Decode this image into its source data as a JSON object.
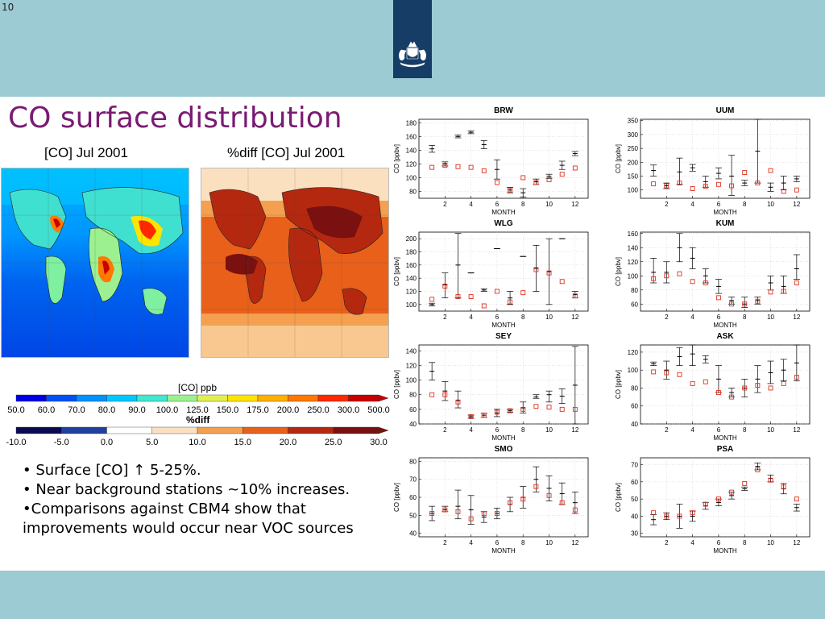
{
  "slide_number": "10",
  "title": "CO surface distribution",
  "maps": [
    {
      "title": "[CO] Jul 2001"
    },
    {
      "title": "%diff [CO] Jul 2001"
    }
  ],
  "colorbar_co": {
    "title": "[CO] ppb",
    "ticks": [
      "50.0",
      "60.0",
      "70.0",
      "80.0",
      "90.0",
      "100.0",
      "125.0",
      "150.0",
      "175.0",
      "200.0",
      "250.0",
      "300.0",
      "500.0"
    ],
    "colors": [
      "#0000e6",
      "#0050f5",
      "#0091ff",
      "#00c8ff",
      "#40e8d0",
      "#9cf090",
      "#e0f050",
      "#ffe400",
      "#ffb000",
      "#ff7800",
      "#ff2800",
      "#c80000"
    ]
  },
  "colorbar_diff": {
    "title": "%diff",
    "ticks": [
      "-10.0",
      "-5.0",
      "0.0",
      "5.0",
      "10.0",
      "15.0",
      "20.0",
      "25.0",
      "30.0"
    ],
    "colors": [
      "#0a0a50",
      "#2040a0",
      "#ffffff",
      "#fbe0c0",
      "#f4a050",
      "#e8601a",
      "#b42810",
      "#7a1010"
    ]
  },
  "bullets": [
    "• Surface [CO] ↑ 5-25%.",
    "• Near background stations ~10% increases.",
    "•Comparisons against CBM4 show that",
    "improvements would occur near VOC sources"
  ],
  "chart_data": [
    {
      "type": "scatter",
      "title": "BRW",
      "xlabel": "MONTH",
      "ylabel": "CO [ppbv]",
      "xlim": [
        0,
        13
      ],
      "ylim": [
        70,
        185
      ],
      "yticks": [
        80,
        100,
        120,
        140,
        160,
        180
      ],
      "xticks": [
        2,
        4,
        6,
        8,
        10,
        12
      ],
      "series": [
        {
          "x": [
            1,
            2,
            3,
            4,
            5,
            6,
            7,
            8,
            9,
            10,
            11,
            12
          ],
          "mean": [
            142,
            120,
            160,
            166,
            148,
            112,
            82,
            78,
            94,
            102,
            118,
            135
          ],
          "low": [
            137,
            117,
            158,
            164,
            142,
            98,
            78,
            72,
            90,
            99,
            112,
            132
          ],
          "high": [
            147,
            123,
            162,
            168,
            154,
            126,
            86,
            84,
            98,
            105,
            124,
            138
          ]
        },
        {
          "x": [
            1,
            2,
            3,
            4,
            5,
            6,
            7,
            8,
            9,
            10,
            11,
            12
          ],
          "values": [
            115,
            118,
            116,
            115,
            110,
            93,
            82,
            100,
            93,
            97,
            105,
            114
          ]
        }
      ]
    },
    {
      "type": "scatter",
      "title": "UUM",
      "xlabel": "MONTH",
      "ylabel": "CO [ppbv]",
      "xlim": [
        0,
        13
      ],
      "ylim": [
        70,
        355
      ],
      "yticks": [
        100,
        150,
        200,
        250,
        300,
        350
      ],
      "xticks": [
        2,
        4,
        6,
        8,
        10,
        12
      ],
      "series": [
        {
          "x": [
            1,
            2,
            3,
            4,
            5,
            6,
            7,
            8,
            9,
            10,
            11,
            12
          ],
          "mean": [
            170,
            115,
            165,
            180,
            130,
            160,
            150,
            125,
            240,
            110,
            125,
            140
          ],
          "low": [
            150,
            105,
            120,
            168,
            110,
            140,
            80,
            115,
            125,
            95,
            100,
            130
          ],
          "high": [
            190,
            125,
            215,
            192,
            150,
            180,
            225,
            135,
            355,
            125,
            150,
            150
          ]
        },
        {
          "x": [
            1,
            2,
            3,
            4,
            5,
            6,
            7,
            8,
            9,
            10,
            11,
            12
          ],
          "values": [
            122,
            115,
            125,
            105,
            113,
            120,
            115,
            163,
            125,
            170,
            95,
            100
          ]
        }
      ]
    },
    {
      "type": "scatter",
      "title": "WLG",
      "xlabel": "MONTH",
      "ylabel": "CO [ppbv]",
      "xlim": [
        0,
        13
      ],
      "ylim": [
        90,
        210
      ],
      "yticks": [
        100,
        120,
        140,
        160,
        180,
        200
      ],
      "xticks": [
        2,
        4,
        6,
        8,
        10,
        12
      ],
      "series": [
        {
          "x": [
            1,
            2,
            3,
            4,
            5,
            6,
            7,
            8,
            9,
            10,
            11,
            12
          ],
          "mean": [
            100,
            130,
            160,
            148,
            122,
            185,
            110,
            173,
            155,
            150,
            200,
            115
          ],
          "low": [
            98,
            110,
            110,
            148,
            120,
            185,
            100,
            173,
            120,
            100,
            200,
            110
          ],
          "high": [
            102,
            148,
            208,
            148,
            124,
            185,
            120,
            173,
            190,
            200,
            200,
            120
          ]
        },
        {
          "x": [
            1,
            2,
            3,
            4,
            5,
            6,
            7,
            8,
            9,
            10,
            11,
            12
          ],
          "values": [
            108,
            128,
            112,
            112,
            98,
            120,
            104,
            118,
            153,
            148,
            135,
            113
          ]
        }
      ]
    },
    {
      "type": "scatter",
      "title": "KUM",
      "xlabel": "MONTH",
      "ylabel": "CO [ppbv]",
      "xlim": [
        0,
        13
      ],
      "ylim": [
        50,
        162
      ],
      "yticks": [
        60,
        80,
        100,
        120,
        140,
        160
      ],
      "xticks": [
        2,
        4,
        6,
        8,
        10,
        12
      ],
      "series": [
        {
          "x": [
            1,
            2,
            3,
            4,
            5,
            6,
            7,
            8,
            9,
            10,
            11,
            12
          ],
          "mean": [
            105,
            105,
            140,
            125,
            100,
            85,
            65,
            60,
            65,
            90,
            85,
            110
          ],
          "low": [
            90,
            90,
            120,
            110,
            90,
            75,
            60,
            55,
            60,
            80,
            75,
            95
          ],
          "high": [
            125,
            120,
            160,
            140,
            110,
            95,
            70,
            70,
            70,
            100,
            100,
            130
          ]
        },
        {
          "x": [
            1,
            2,
            3,
            4,
            5,
            6,
            7,
            8,
            9,
            10,
            11,
            12
          ],
          "values": [
            96,
            100,
            103,
            92,
            90,
            69,
            60,
            60,
            64,
            77,
            78,
            90
          ]
        }
      ]
    },
    {
      "type": "scatter",
      "title": "SEY",
      "xlabel": "MONTH",
      "ylabel": "CO [ppbv]",
      "xlim": [
        0,
        13
      ],
      "ylim": [
        40,
        148
      ],
      "yticks": [
        40,
        60,
        80,
        100,
        120,
        140
      ],
      "xticks": [
        2,
        4,
        6,
        8,
        10,
        12
      ],
      "series": [
        {
          "x": [
            1,
            2,
            3,
            4,
            5,
            6,
            7,
            8,
            9,
            10,
            11,
            12
          ],
          "mean": [
            112,
            85,
            72,
            50,
            52,
            55,
            58,
            62,
            77,
            80,
            78,
            93
          ],
          "low": [
            100,
            72,
            62,
            48,
            49,
            50,
            56,
            55,
            75,
            70,
            68,
            40
          ],
          "high": [
            124,
            98,
            85,
            52,
            55,
            60,
            60,
            70,
            80,
            85,
            88,
            146
          ]
        },
        {
          "x": [
            1,
            2,
            3,
            4,
            5,
            6,
            7,
            8,
            9,
            10,
            11,
            12
          ],
          "values": [
            80,
            80,
            70,
            50,
            52,
            56,
            58,
            60,
            64,
            63,
            60,
            60
          ]
        }
      ]
    },
    {
      "type": "scatter",
      "title": "ASK",
      "xlabel": "MONTH",
      "ylabel": "CO [ppbv]",
      "xlim": [
        0,
        13
      ],
      "ylim": [
        40,
        128
      ],
      "yticks": [
        40,
        60,
        80,
        100,
        120
      ],
      "xticks": [
        2,
        4,
        6,
        8,
        10,
        12
      ],
      "series": [
        {
          "x": [
            1,
            2,
            3,
            4,
            5,
            6,
            7,
            8,
            9,
            10,
            11,
            12
          ],
          "mean": [
            107,
            100,
            115,
            118,
            112,
            90,
            75,
            80,
            90,
            97,
            100,
            108
          ],
          "low": [
            105,
            90,
            105,
            105,
            108,
            75,
            70,
            70,
            75,
            85,
            88,
            88
          ],
          "high": [
            109,
            110,
            125,
            128,
            116,
            105,
            80,
            90,
            105,
            110,
            112,
            128
          ]
        },
        {
          "x": [
            1,
            2,
            3,
            4,
            5,
            6,
            7,
            8,
            9,
            10,
            11,
            12
          ],
          "values": [
            98,
            97,
            95,
            85,
            87,
            75,
            70,
            80,
            83,
            80,
            85,
            92
          ]
        }
      ]
    },
    {
      "type": "scatter",
      "title": "SMO",
      "xlabel": "MONTH",
      "ylabel": "CO [ppbv]",
      "xlim": [
        0,
        13
      ],
      "ylim": [
        38,
        82
      ],
      "yticks": [
        40,
        50,
        60,
        70,
        80
      ],
      "xticks": [
        2,
        4,
        6,
        8,
        10,
        12
      ],
      "series": [
        {
          "x": [
            1,
            2,
            3,
            4,
            5,
            6,
            7,
            8,
            9,
            10,
            11,
            12
          ],
          "mean": [
            51,
            53,
            55,
            53,
            49,
            51,
            56,
            60,
            70,
            65,
            62,
            57
          ],
          "low": [
            47,
            52,
            48,
            45,
            46,
            48,
            52,
            54,
            63,
            58,
            56,
            51
          ],
          "high": [
            55,
            55,
            64,
            61,
            52,
            54,
            60,
            66,
            77,
            72,
            68,
            63
          ]
        },
        {
          "x": [
            1,
            2,
            3,
            4,
            5,
            6,
            7,
            8,
            9,
            10,
            11,
            12
          ],
          "values": [
            51,
            53,
            52,
            48,
            51,
            51,
            57,
            59,
            66,
            61,
            57,
            53
          ]
        }
      ]
    },
    {
      "type": "scatter",
      "title": "PSA",
      "xlabel": "MONTH",
      "ylabel": "CO [ppbv]",
      "xlim": [
        0,
        13
      ],
      "ylim": [
        28,
        74
      ],
      "yticks": [
        30,
        40,
        50,
        60,
        70
      ],
      "xticks": [
        2,
        4,
        6,
        8,
        10,
        12
      ],
      "series": [
        {
          "x": [
            1,
            2,
            3,
            4,
            5,
            6,
            7,
            8,
            9,
            10,
            11,
            12
          ],
          "mean": [
            38,
            40,
            40,
            40,
            46,
            48,
            52,
            56,
            69,
            62,
            56,
            45
          ],
          "low": [
            35,
            38,
            33,
            37,
            44,
            46,
            50,
            55,
            67,
            60,
            53,
            43
          ],
          "high": [
            41,
            42,
            47,
            43,
            48,
            50,
            54,
            57,
            71,
            64,
            59,
            47
          ]
        },
        {
          "x": [
            1,
            2,
            3,
            4,
            5,
            6,
            7,
            8,
            9,
            10,
            11,
            12
          ],
          "values": [
            42,
            40,
            40,
            42,
            47,
            50,
            54,
            59,
            67,
            61,
            57,
            50
          ]
        }
      ]
    }
  ]
}
